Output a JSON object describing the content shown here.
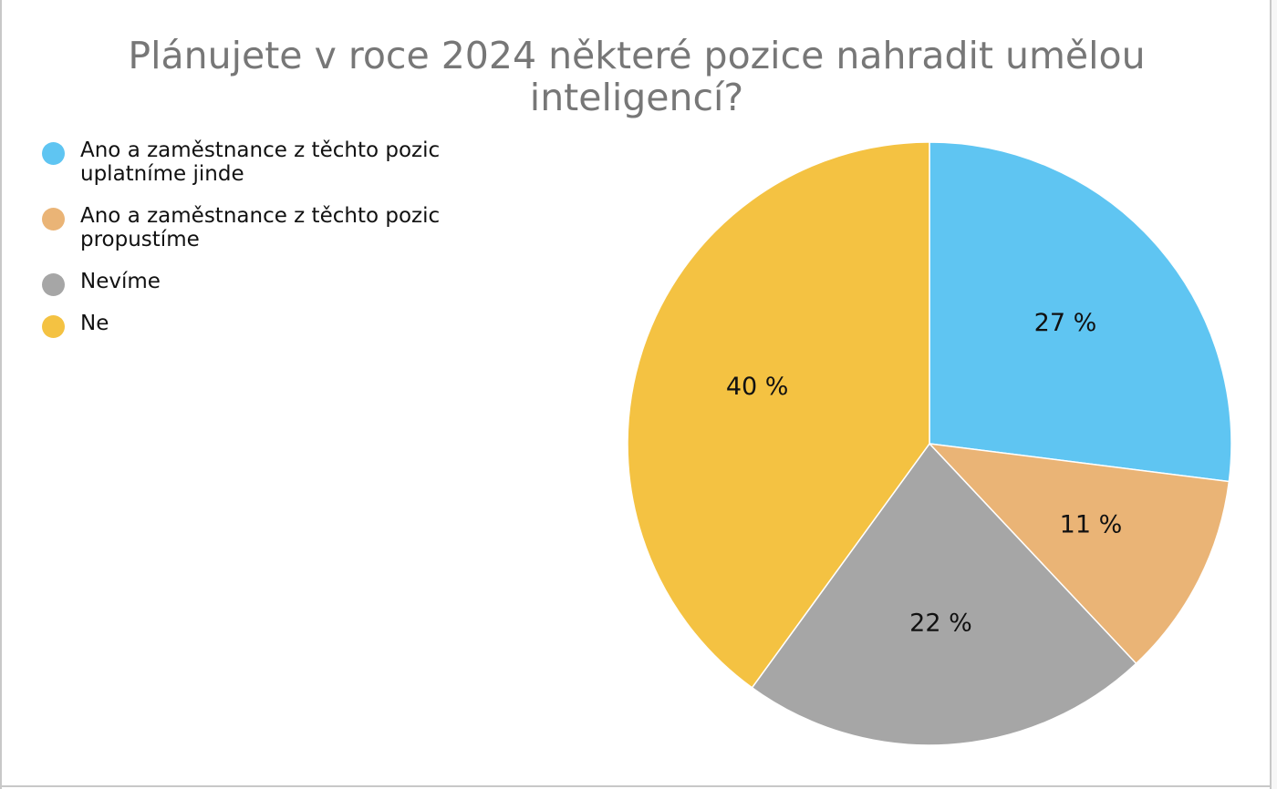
{
  "chart_data": {
    "type": "pie",
    "title": "Plánujete v roce 2024 některé pozice nahradit umělou inteligencí?",
    "legend_position": "top-left",
    "series": [
      {
        "categories": [
          "Ano a zaměstnance z těchto pozic uplatníme jinde",
          "Ano a zaměstnance z těchto pozic propustíme",
          "Nevíme",
          "Ne"
        ],
        "values": [
          27,
          11,
          22,
          40
        ],
        "labels": [
          "27 %",
          "11 %",
          "22 %",
          "40 %"
        ],
        "colors": [
          "#5fc5f2",
          "#eab476",
          "#a6a6a6",
          "#f4c242"
        ]
      }
    ]
  },
  "legend": [
    {
      "label": "Ano a zaměstnance z těchto pozic\nuplatníme jinde",
      "color": "#5fc5f2"
    },
    {
      "label": "Ano a zaměstnance z těchto pozic\npropustíme",
      "color": "#eab476"
    },
    {
      "label": "Nevíme",
      "color": "#a6a6a6"
    },
    {
      "label": "Ne",
      "color": "#f4c242"
    }
  ]
}
